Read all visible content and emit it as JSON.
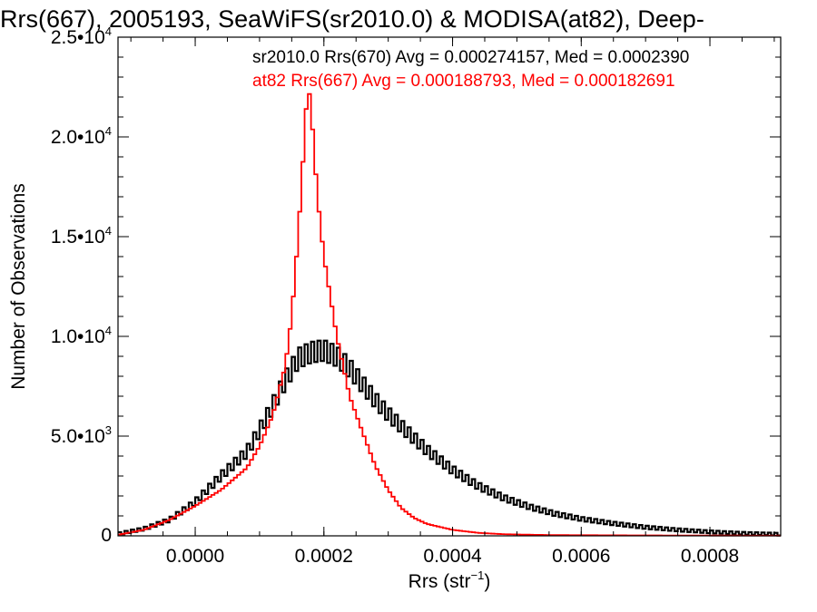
{
  "chart_data": {
    "type": "line",
    "title": "Rrs(667), 2005193, SeaWiFS(sr2010.0) & MODISA(at82), Deep-",
    "xlabel": "Rrs (str",
    "xlabel_sup": "−1",
    "xlabel_end": ")",
    "ylabel": "Number of Observations",
    "xlim": [
      -0.00012,
      0.00091
    ],
    "ylim": [
      0,
      25000
    ],
    "x_ticks": [
      {
        "value": 0.0,
        "label": "0.0000"
      },
      {
        "value": 0.0002,
        "label": "0.0002"
      },
      {
        "value": 0.0004,
        "label": "0.0004"
      },
      {
        "value": 0.0006,
        "label": "0.0006"
      },
      {
        "value": 0.0008,
        "label": "0.0008"
      }
    ],
    "y_ticks": [
      {
        "value": 0,
        "mant": "0",
        "exp": ""
      },
      {
        "value": 5000,
        "mant": "5.0•10",
        "exp": "3"
      },
      {
        "value": 10000,
        "mant": "1.0•10",
        "exp": "4"
      },
      {
        "value": 15000,
        "mant": "1.5•10",
        "exp": "4"
      },
      {
        "value": 20000,
        "mant": "2.0•10",
        "exp": "4"
      },
      {
        "value": 25000,
        "mant": "2.5•10",
        "exp": "4"
      }
    ],
    "annotations": [
      {
        "text": "sr2010.0 Rrs(670) Avg = 0.000274157, Med = 0.0002390",
        "color": "#000000"
      },
      {
        "text": "at82 Rrs(667) Avg = 0.000188793, Med = 0.000182691",
        "color": "#ff0000"
      }
    ],
    "series": [
      {
        "color": "#000000",
        "kind": "noisy-histogram",
        "x": [
          -0.00012,
          -8e-05,
          -4e-05,
          0.0,
          4e-05,
          8e-05,
          0.0001,
          0.00012,
          0.00014,
          0.00016,
          0.00018,
          0.0002,
          0.00022,
          0.00024,
          0.00026,
          0.00028,
          0.0003,
          0.00032,
          0.00034,
          0.00036,
          0.0004,
          0.00044,
          0.00048,
          0.00052,
          0.00056,
          0.0006,
          0.00065,
          0.0007,
          0.00075,
          0.0008,
          0.00085,
          0.00091
        ],
        "y": [
          100,
          350,
          800,
          1700,
          3000,
          4200,
          5300,
          6500,
          7800,
          8900,
          9200,
          9300,
          9000,
          8400,
          7600,
          6800,
          6100,
          5500,
          4900,
          4300,
          3300,
          2500,
          1900,
          1450,
          1100,
          850,
          620,
          430,
          300,
          200,
          130,
          80
        ]
      },
      {
        "color": "#ff0000",
        "kind": "histogram",
        "x": [
          -0.00012,
          -8e-05,
          -4e-05,
          0.0,
          4e-05,
          8e-05,
          0.0001,
          0.00012,
          0.00014,
          0.00015,
          0.00016,
          0.00017,
          0.000175,
          0.00018,
          0.00019,
          0.0002,
          0.00021,
          0.00022,
          0.00024,
          0.00026,
          0.00028,
          0.0003,
          0.00032,
          0.00034,
          0.00036,
          0.0004,
          0.00044,
          0.00048,
          0.00055,
          0.0007,
          0.00091
        ],
        "y": [
          50,
          300,
          800,
          1500,
          2300,
          3400,
          4500,
          6000,
          8500,
          11000,
          15000,
          20000,
          22800,
          21500,
          17000,
          14000,
          12000,
          10000,
          7000,
          5200,
          3500,
          2300,
          1400,
          900,
          600,
          300,
          150,
          80,
          40,
          20,
          10
        ]
      }
    ]
  }
}
